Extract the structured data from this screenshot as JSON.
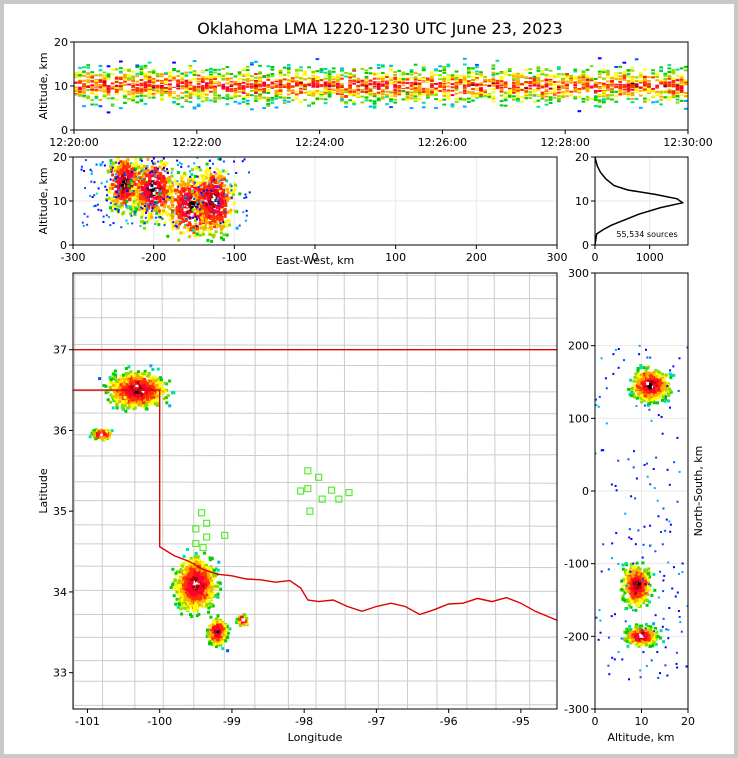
{
  "title": "Oklahoma LMA 1220-1230 UTC June 23, 2023",
  "chart_data": [
    {
      "type": "heatmap",
      "panel": "time-altitude",
      "ylabel": "Altitude, km",
      "ylim": [
        0,
        20
      ],
      "yticks": [
        "0",
        "10",
        "20"
      ],
      "xticks": [
        "12:20:00",
        "12:22:00",
        "12:24:00",
        "12:26:00",
        "12:28:00",
        "12:30:00"
      ],
      "x_minutes": [
        0,
        2,
        4,
        6,
        8,
        10
      ]
    },
    {
      "type": "heatmap",
      "panel": "east-west-altitude",
      "xlabel": "East-West, km",
      "ylabel": "Altitude, km",
      "xlim": [
        -300,
        300
      ],
      "ylim": [
        0,
        20
      ],
      "xticks": [
        "-300",
        "-200",
        "-100",
        "0",
        "100",
        "200",
        "300"
      ],
      "yticks": [
        "0",
        "10",
        "20"
      ],
      "clusters": [
        {
          "x": -235,
          "alt": 14,
          "w": 20,
          "h": 6
        },
        {
          "x": -200,
          "alt": 13,
          "w": 24,
          "h": 7
        },
        {
          "x": -150,
          "alt": 9,
          "w": 35,
          "h": 7
        },
        {
          "x": -125,
          "alt": 10,
          "w": 25,
          "h": 7
        }
      ]
    },
    {
      "type": "line",
      "panel": "altitude-histogram",
      "annotation": "55,534 sources",
      "xlim": [
        0,
        1700
      ],
      "ylim": [
        0,
        20
      ],
      "xticks": [
        "0",
        "1000"
      ],
      "yticks": [
        "0",
        "10",
        "20"
      ],
      "series": [
        {
          "points": [
            [
              0,
              0
            ],
            [
              30,
              2.5
            ],
            [
              150,
              3.5
            ],
            [
              300,
              4.5
            ],
            [
              500,
              5.5
            ],
            [
              800,
              7
            ],
            [
              1200,
              8.5
            ],
            [
              1600,
              9.6
            ],
            [
              1500,
              10.5
            ],
            [
              1100,
              11.5
            ],
            [
              600,
              12.5
            ],
            [
              350,
              13.5
            ],
            [
              200,
              15
            ],
            [
              100,
              16.5
            ],
            [
              40,
              18
            ],
            [
              10,
              19.5
            ],
            [
              0,
              20
            ]
          ]
        }
      ]
    },
    {
      "type": "heatmap",
      "panel": "plan-view",
      "xlabel": "Longitude",
      "ylabel": "Latitude",
      "xlim": [
        -101.2,
        -94.5
      ],
      "ylim": [
        32.55,
        37.95
      ],
      "xticks": [
        "-101",
        "-100",
        "-99",
        "-98",
        "-97",
        "-96",
        "-95"
      ],
      "yticks": [
        "33",
        "34",
        "35",
        "36",
        "37"
      ],
      "clusters": [
        {
          "lon": -100.3,
          "lat": 36.5,
          "rx": 0.35,
          "ry": 0.2
        },
        {
          "lon": -100.8,
          "lat": 35.95,
          "rx": 0.12,
          "ry": 0.06
        },
        {
          "lon": -99.5,
          "lat": 34.1,
          "rx": 0.25,
          "ry": 0.3
        },
        {
          "lon": -99.2,
          "lat": 33.5,
          "rx": 0.12,
          "ry": 0.15
        },
        {
          "lon": -98.85,
          "lat": 33.65,
          "rx": 0.06,
          "ry": 0.06
        }
      ],
      "stations": [
        [
          -97.95,
          35.5
        ],
        [
          -97.8,
          35.42
        ],
        [
          -97.95,
          35.28
        ],
        [
          -97.62,
          35.26
        ],
        [
          -97.38,
          35.23
        ],
        [
          -97.75,
          35.15
        ],
        [
          -97.52,
          35.15
        ],
        [
          -97.92,
          35.0
        ],
        [
          -98.05,
          35.25
        ],
        [
          -99.42,
          34.98
        ],
        [
          -99.35,
          34.85
        ],
        [
          -99.5,
          34.78
        ],
        [
          -99.35,
          34.68
        ],
        [
          -99.1,
          34.7
        ],
        [
          -99.5,
          34.6
        ],
        [
          -99.4,
          34.55
        ]
      ]
    },
    {
      "type": "heatmap",
      "panel": "altitude-north-south",
      "xlabel": "Altitude, km",
      "ylabel": "North-South, km",
      "xlim": [
        0,
        20
      ],
      "ylim": [
        -300,
        300
      ],
      "xticks": [
        "0",
        "10",
        "20"
      ],
      "yticks": [
        "-300",
        "-200",
        "-100",
        "0",
        "100",
        "200",
        "300"
      ],
      "clusters": [
        {
          "alt": 12,
          "y": 145,
          "w": 8,
          "h": 20
        },
        {
          "alt": 9,
          "y": -130,
          "w": 6,
          "h": 25
        },
        {
          "alt": 10,
          "y": -200,
          "w": 7,
          "h": 12
        }
      ]
    }
  ]
}
